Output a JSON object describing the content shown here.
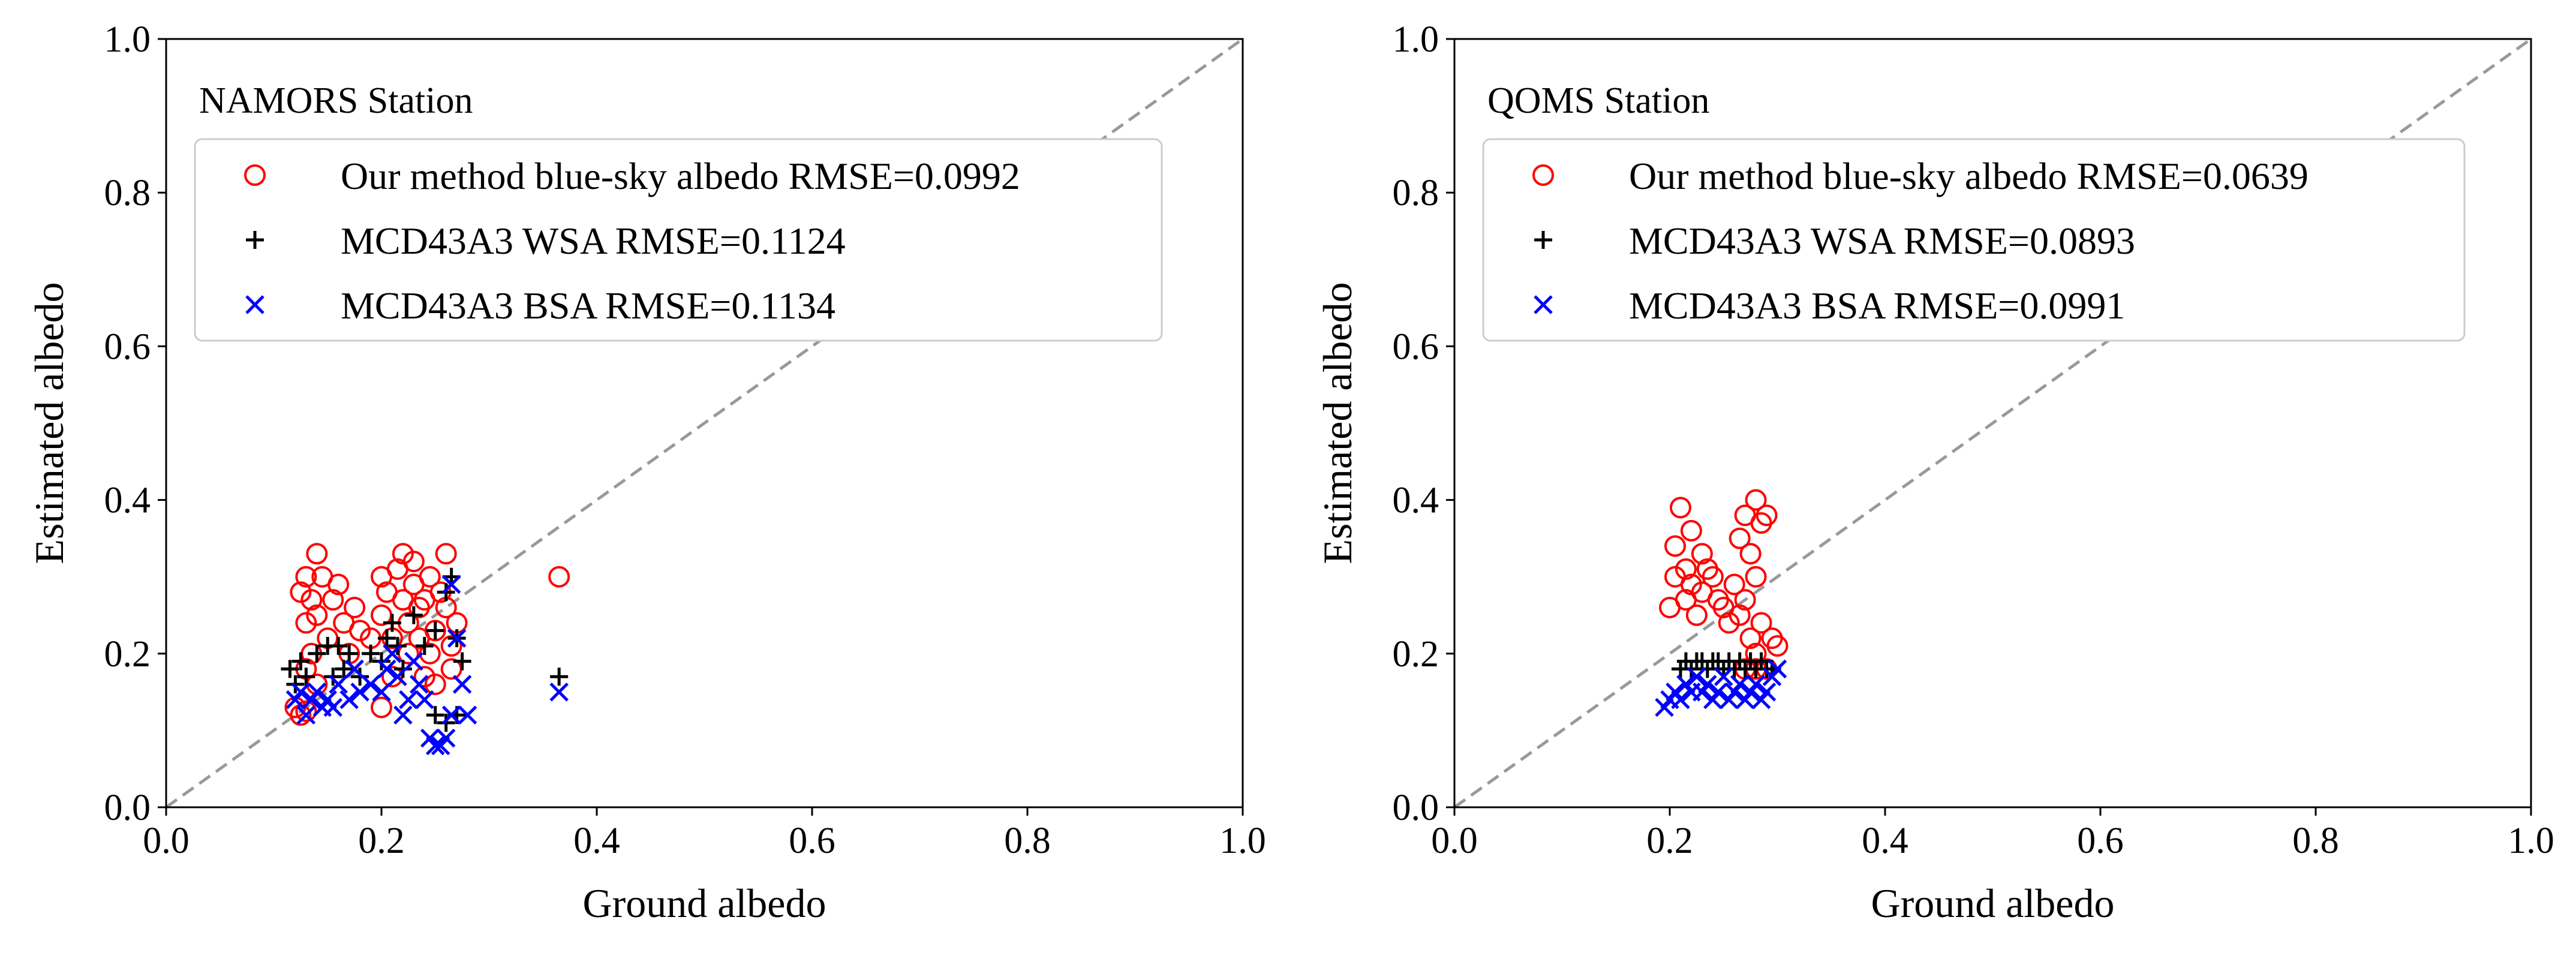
{
  "chart_data": [
    {
      "type": "scatter",
      "title": "NAMORS Station",
      "xlabel": "Ground albedo",
      "ylabel": "Estimated albedo",
      "xlim": [
        0.0,
        1.0
      ],
      "ylim": [
        0.0,
        1.0
      ],
      "xticks": [
        "0.0",
        "0.2",
        "0.4",
        "0.6",
        "0.8",
        "1.0"
      ],
      "yticks": [
        "0.0",
        "0.2",
        "0.4",
        "0.6",
        "0.8",
        "1.0"
      ],
      "reference_line": "1:1",
      "legend_position": "upper-left",
      "series": [
        {
          "name": "Our method blue-sky albedo RMSE=0.0992",
          "marker": "circle-open",
          "color": "#ff0000",
          "points": [
            [
              0.12,
              0.13
            ],
            [
              0.125,
              0.12
            ],
            [
              0.13,
              0.125
            ],
            [
              0.125,
              0.28
            ],
            [
              0.13,
              0.3
            ],
            [
              0.135,
              0.27
            ],
            [
              0.14,
              0.33
            ],
            [
              0.14,
              0.25
            ],
            [
              0.135,
              0.2
            ],
            [
              0.13,
              0.18
            ],
            [
              0.145,
              0.3
            ],
            [
              0.15,
              0.22
            ],
            [
              0.14,
              0.16
            ],
            [
              0.13,
              0.24
            ],
            [
              0.155,
              0.27
            ],
            [
              0.16,
              0.29
            ],
            [
              0.165,
              0.24
            ],
            [
              0.17,
              0.2
            ],
            [
              0.175,
              0.26
            ],
            [
              0.18,
              0.23
            ],
            [
              0.19,
              0.22
            ],
            [
              0.2,
              0.3
            ],
            [
              0.2,
              0.25
            ],
            [
              0.205,
              0.28
            ],
            [
              0.21,
              0.22
            ],
            [
              0.21,
              0.17
            ],
            [
              0.2,
              0.13
            ],
            [
              0.215,
              0.31
            ],
            [
              0.22,
              0.27
            ],
            [
              0.22,
              0.33
            ],
            [
              0.225,
              0.24
            ],
            [
              0.225,
              0.2
            ],
            [
              0.23,
              0.29
            ],
            [
              0.23,
              0.32
            ],
            [
              0.235,
              0.26
            ],
            [
              0.235,
              0.22
            ],
            [
              0.24,
              0.27
            ],
            [
              0.24,
              0.17
            ],
            [
              0.245,
              0.3
            ],
            [
              0.245,
              0.2
            ],
            [
              0.25,
              0.23
            ],
            [
              0.25,
              0.16
            ],
            [
              0.255,
              0.28
            ],
            [
              0.26,
              0.26
            ],
            [
              0.26,
              0.33
            ],
            [
              0.265,
              0.21
            ],
            [
              0.27,
              0.24
            ],
            [
              0.265,
              0.18
            ],
            [
              0.365,
              0.3
            ]
          ]
        },
        {
          "name": "MCD43A3 WSA RMSE=0.1124",
          "marker": "plus",
          "color": "#000000",
          "points": [
            [
              0.115,
              0.18
            ],
            [
              0.12,
              0.16
            ],
            [
              0.125,
              0.19
            ],
            [
              0.13,
              0.17
            ],
            [
              0.14,
              0.2
            ],
            [
              0.15,
              0.21
            ],
            [
              0.155,
              0.17
            ],
            [
              0.16,
              0.21
            ],
            [
              0.165,
              0.18
            ],
            [
              0.17,
              0.2
            ],
            [
              0.18,
              0.17
            ],
            [
              0.19,
              0.2
            ],
            [
              0.2,
              0.19
            ],
            [
              0.205,
              0.22
            ],
            [
              0.21,
              0.24
            ],
            [
              0.215,
              0.21
            ],
            [
              0.22,
              0.18
            ],
            [
              0.23,
              0.25
            ],
            [
              0.24,
              0.21
            ],
            [
              0.25,
              0.23
            ],
            [
              0.26,
              0.28
            ],
            [
              0.265,
              0.3
            ],
            [
              0.27,
              0.22
            ],
            [
              0.275,
              0.19
            ],
            [
              0.25,
              0.12
            ],
            [
              0.26,
              0.11
            ],
            [
              0.27,
              0.12
            ],
            [
              0.365,
              0.17
            ]
          ]
        },
        {
          "name": "MCD43A3 BSA RMSE=0.1134",
          "marker": "x",
          "color": "#0000ff",
          "points": [
            [
              0.12,
              0.14
            ],
            [
              0.125,
              0.15
            ],
            [
              0.13,
              0.12
            ],
            [
              0.135,
              0.14
            ],
            [
              0.14,
              0.15
            ],
            [
              0.145,
              0.13
            ],
            [
              0.15,
              0.14
            ],
            [
              0.155,
              0.13
            ],
            [
              0.16,
              0.16
            ],
            [
              0.17,
              0.14
            ],
            [
              0.175,
              0.18
            ],
            [
              0.18,
              0.15
            ],
            [
              0.19,
              0.16
            ],
            [
              0.2,
              0.15
            ],
            [
              0.205,
              0.18
            ],
            [
              0.21,
              0.2
            ],
            [
              0.215,
              0.17
            ],
            [
              0.22,
              0.12
            ],
            [
              0.225,
              0.14
            ],
            [
              0.23,
              0.19
            ],
            [
              0.235,
              0.16
            ],
            [
              0.24,
              0.14
            ],
            [
              0.245,
              0.09
            ],
            [
              0.25,
              0.08
            ],
            [
              0.255,
              0.08
            ],
            [
              0.26,
              0.09
            ],
            [
              0.265,
              0.29
            ],
            [
              0.27,
              0.22
            ],
            [
              0.265,
              0.12
            ],
            [
              0.275,
              0.16
            ],
            [
              0.28,
              0.12
            ],
            [
              0.365,
              0.15
            ]
          ]
        }
      ]
    },
    {
      "type": "scatter",
      "title": "QOMS Station",
      "xlabel": "Ground albedo",
      "ylabel": "Estimated albedo",
      "xlim": [
        0.0,
        1.0
      ],
      "ylim": [
        0.0,
        1.0
      ],
      "xticks": [
        "0.0",
        "0.2",
        "0.4",
        "0.6",
        "0.8",
        "1.0"
      ],
      "yticks": [
        "0.0",
        "0.2",
        "0.4",
        "0.6",
        "0.8",
        "1.0"
      ],
      "reference_line": "1:1",
      "legend_position": "upper-left",
      "series": [
        {
          "name": "Our method blue-sky albedo RMSE=0.0639",
          "marker": "circle-open",
          "color": "#ff0000",
          "points": [
            [
              0.2,
              0.26
            ],
            [
              0.205,
              0.3
            ],
            [
              0.205,
              0.34
            ],
            [
              0.21,
              0.39
            ],
            [
              0.215,
              0.31
            ],
            [
              0.215,
              0.27
            ],
            [
              0.22,
              0.36
            ],
            [
              0.22,
              0.29
            ],
            [
              0.225,
              0.25
            ],
            [
              0.23,
              0.33
            ],
            [
              0.23,
              0.28
            ],
            [
              0.235,
              0.31
            ],
            [
              0.24,
              0.3
            ],
            [
              0.245,
              0.27
            ],
            [
              0.25,
              0.26
            ],
            [
              0.255,
              0.24
            ],
            [
              0.26,
              0.29
            ],
            [
              0.265,
              0.25
            ],
            [
              0.265,
              0.35
            ],
            [
              0.27,
              0.38
            ],
            [
              0.27,
              0.27
            ],
            [
              0.275,
              0.33
            ],
            [
              0.275,
              0.22
            ],
            [
              0.28,
              0.4
            ],
            [
              0.28,
              0.3
            ],
            [
              0.28,
              0.2
            ],
            [
              0.285,
              0.37
            ],
            [
              0.285,
              0.24
            ],
            [
              0.29,
              0.38
            ],
            [
              0.29,
              0.18
            ],
            [
              0.28,
              0.18
            ],
            [
              0.295,
              0.22
            ],
            [
              0.3,
              0.21
            ],
            [
              0.27,
              0.18
            ]
          ]
        },
        {
          "name": "MCD43A3 WSA RMSE=0.0893",
          "marker": "plus",
          "color": "#000000",
          "points": [
            [
              0.21,
              0.18
            ],
            [
              0.215,
              0.19
            ],
            [
              0.22,
              0.18
            ],
            [
              0.225,
              0.19
            ],
            [
              0.23,
              0.19
            ],
            [
              0.235,
              0.18
            ],
            [
              0.24,
              0.19
            ],
            [
              0.245,
              0.19
            ],
            [
              0.25,
              0.18
            ],
            [
              0.255,
              0.19
            ],
            [
              0.26,
              0.18
            ],
            [
              0.265,
              0.19
            ],
            [
              0.27,
              0.18
            ],
            [
              0.275,
              0.19
            ],
            [
              0.28,
              0.18
            ],
            [
              0.285,
              0.19
            ],
            [
              0.29,
              0.18
            ],
            [
              0.295,
              0.18
            ]
          ]
        },
        {
          "name": "MCD43A3 BSA RMSE=0.0991",
          "marker": "x",
          "color": "#0000ff",
          "points": [
            [
              0.195,
              0.13
            ],
            [
              0.2,
              0.14
            ],
            [
              0.205,
              0.15
            ],
            [
              0.21,
              0.14
            ],
            [
              0.215,
              0.16
            ],
            [
              0.22,
              0.15
            ],
            [
              0.225,
              0.17
            ],
            [
              0.23,
              0.15
            ],
            [
              0.235,
              0.16
            ],
            [
              0.24,
              0.14
            ],
            [
              0.245,
              0.15
            ],
            [
              0.25,
              0.17
            ],
            [
              0.255,
              0.14
            ],
            [
              0.26,
              0.15
            ],
            [
              0.265,
              0.16
            ],
            [
              0.27,
              0.14
            ],
            [
              0.275,
              0.15
            ],
            [
              0.28,
              0.16
            ],
            [
              0.285,
              0.14
            ],
            [
              0.29,
              0.15
            ],
            [
              0.295,
              0.17
            ],
            [
              0.3,
              0.18
            ]
          ]
        }
      ]
    }
  ]
}
